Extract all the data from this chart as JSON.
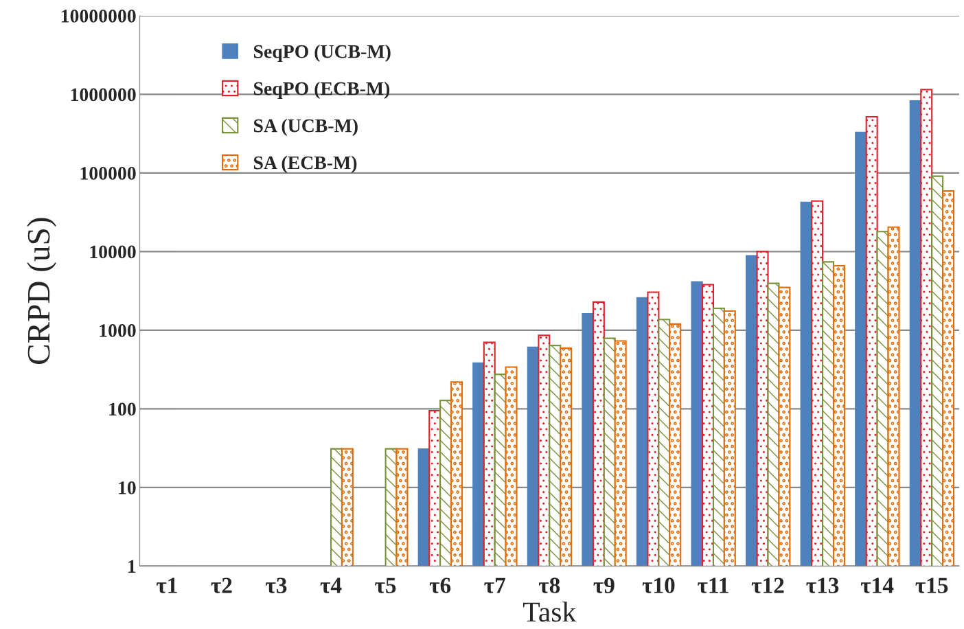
{
  "chart_data": {
    "type": "bar",
    "xlabel": "Task",
    "ylabel": "CRPD (uS)",
    "categories": [
      "τ1",
      "τ2",
      "τ3",
      "τ4",
      "τ5",
      "τ6",
      "τ7",
      "τ8",
      "τ9",
      "τ10",
      "τ11",
      "τ12",
      "τ13",
      "τ14",
      "τ15"
    ],
    "series": [
      {
        "name": "SeqPO (UCB-M)",
        "color": "#4f81bd",
        "values": [
          null,
          null,
          null,
          null,
          null,
          31,
          385,
          610,
          1630,
          2600,
          4150,
          8900,
          42500,
          330000,
          830000
        ]
      },
      {
        "name": "SeqPO (ECB-M)",
        "color": "#e0202a",
        "values": [
          null,
          null,
          null,
          null,
          null,
          95,
          700,
          860,
          2280,
          3050,
          3800,
          10000,
          44000,
          520000,
          1150000
        ]
      },
      {
        "name": "SA (UCB-M)",
        "color": "#77933c",
        "values": [
          null,
          null,
          null,
          31,
          31,
          128,
          275,
          640,
          790,
          1370,
          1900,
          3950,
          7400,
          18000,
          91000
        ]
      },
      {
        "name": "SA (ECB-M)",
        "color": "#e36c09",
        "values": [
          null,
          null,
          null,
          31,
          31,
          220,
          340,
          590,
          730,
          1200,
          1750,
          3500,
          6600,
          20500,
          59000
        ]
      }
    ],
    "log": "y",
    "ylim": [
      1,
      10000000
    ],
    "yticks": [
      1,
      10,
      100,
      1000,
      10000,
      100000,
      1000000,
      10000000
    ],
    "grid": "y",
    "legend": "top left"
  }
}
